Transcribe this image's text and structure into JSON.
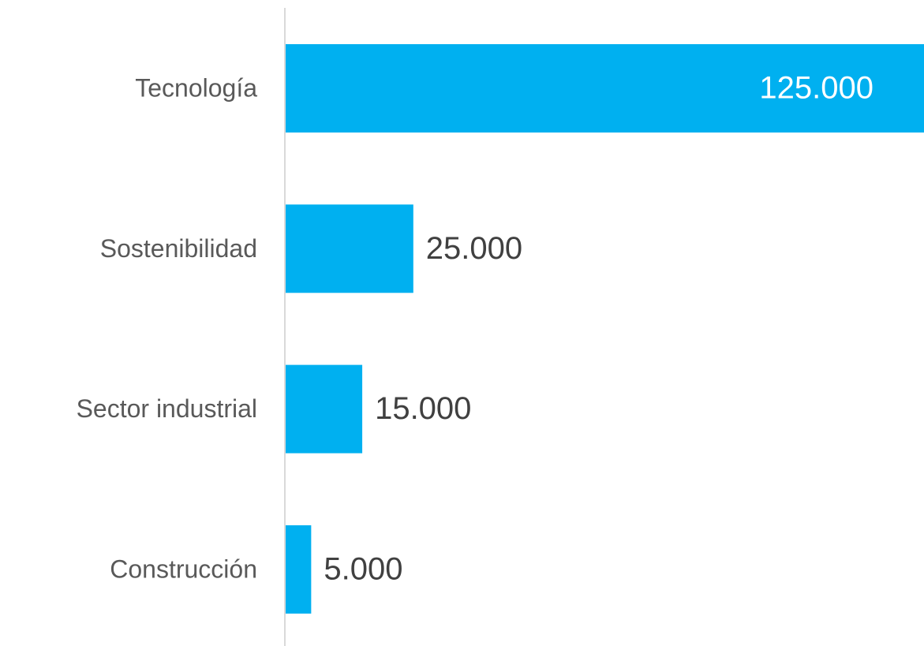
{
  "chart_data": {
    "type": "bar",
    "orientation": "horizontal",
    "categories": [
      "Tecnología",
      "Sostenibilidad",
      "Sector industrial",
      "Construcción"
    ],
    "values": [
      125000,
      25000,
      15000,
      5000
    ],
    "value_labels": [
      "125.000",
      "25.000",
      "15.000",
      "5.000"
    ],
    "color": "#00b0f0"
  }
}
